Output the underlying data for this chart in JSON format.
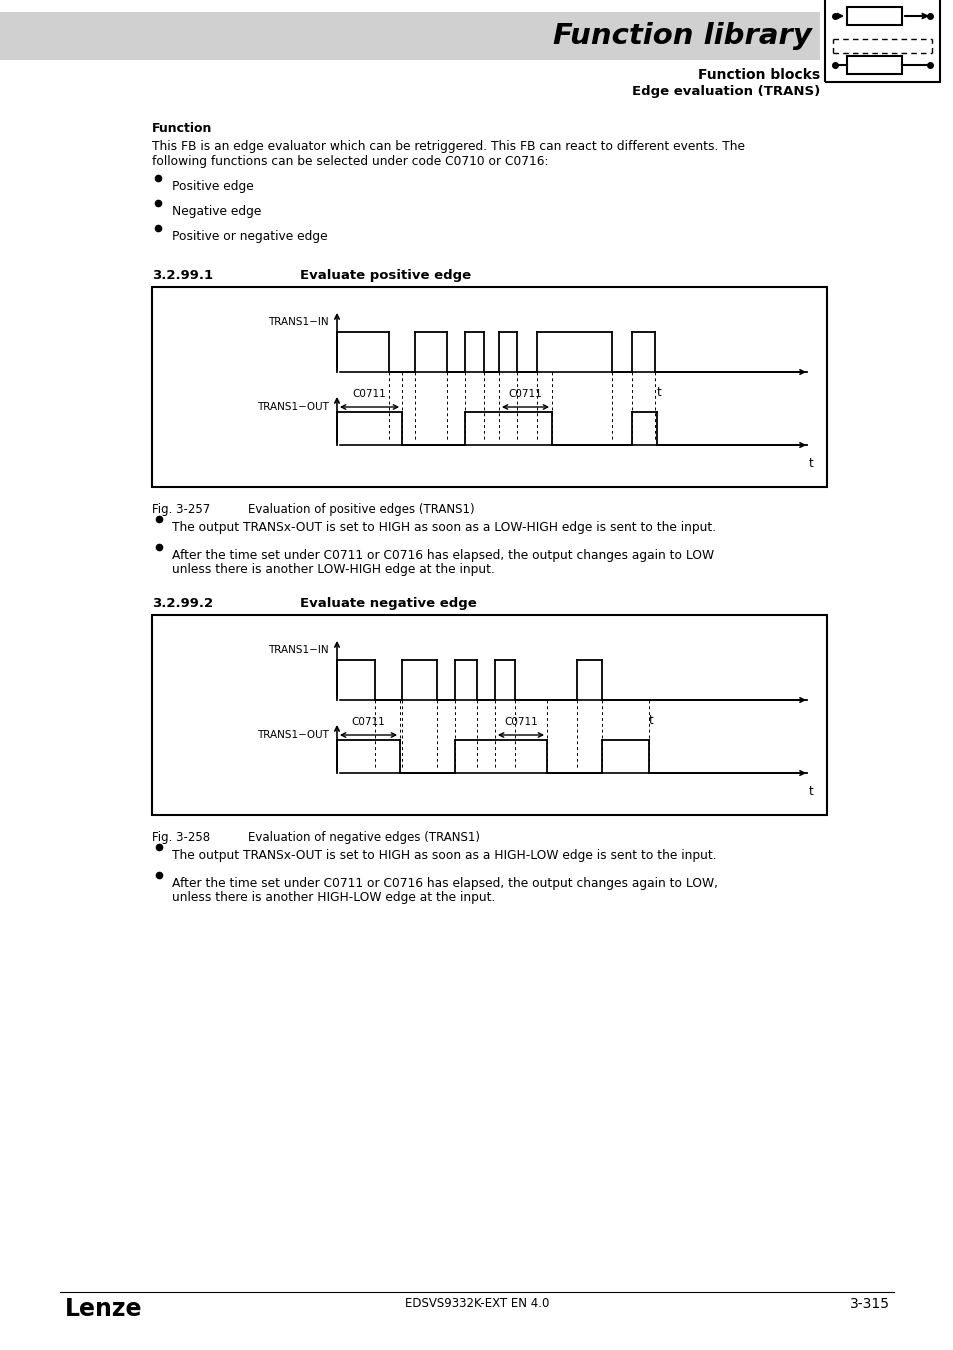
{
  "page_bg": "#ffffff",
  "header_bg": "#d0d0d0",
  "title_main": "Function library",
  "title_sub1": "Function blocks",
  "title_sub2": "Edge evaluation (TRANS)",
  "section_label": "3.2.99.1",
  "section_title": "Evaluate positive edge",
  "section2_label": "3.2.99.2",
  "section2_title": "Evaluate negative edge",
  "func_label": "Function",
  "func_text1": "This FB is an edge evaluator which can be retriggered. This FB can react to different events. The",
  "func_text2": "following functions can be selected under code C0710 or C0716:",
  "bullets": [
    "Positive edge",
    "Negative edge",
    "Positive or negative edge"
  ],
  "fig1_label": "Fig. 3-257",
  "fig1_caption": "Evaluation of positive edges (TRANS1)",
  "fig1_b1": "The output TRANSx-OUT is set to HIGH as soon as a LOW-HIGH edge is sent to the input.",
  "fig1_b2a": "After the time set under C0711 or C0716 has elapsed, the output changes again to LOW",
  "fig1_b2b": "unless there is another LOW-HIGH edge at the input.",
  "fig2_label": "Fig. 3-258",
  "fig2_caption": "Evaluation of negative edges (TRANS1)",
  "fig2_b1": "The output TRANSx-OUT is set to HIGH as soon as a HIGH-LOW edge is sent to the input.",
  "fig2_b2a": "After the time set under C0711 or C0716 has elapsed, the output changes again to LOW,",
  "fig2_b2b": "unless there is another HIGH-LOW edge at the input.",
  "footer_left": "Lenze",
  "footer_center": "EDSVS9332K-EXT EN 4.0",
  "footer_right": "3-315"
}
